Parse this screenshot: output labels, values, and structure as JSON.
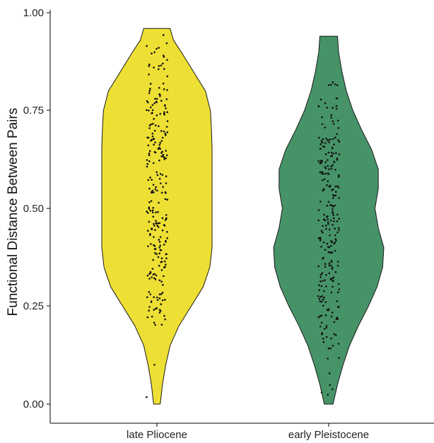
{
  "chart_data": {
    "type": "violin",
    "title": "",
    "xlabel": "",
    "ylabel": "Functional Distance Between Pairs",
    "ylim": [
      0,
      1
    ],
    "yticks": [
      "0.00",
      "0.25",
      "0.50",
      "0.75",
      "1.00"
    ],
    "ytick_values": [
      0,
      0.25,
      0.5,
      0.75,
      1.0
    ],
    "categories": [
      "late Pliocene",
      "early Pleistocene"
    ],
    "grid": false,
    "legend": "none",
    "series": [
      {
        "category": "late Pliocene",
        "color": "#EEDF35",
        "min": 0.0,
        "max": 0.96,
        "density": [
          [
            0.0,
            0.06
          ],
          [
            0.05,
            0.1
          ],
          [
            0.1,
            0.16
          ],
          [
            0.15,
            0.24
          ],
          [
            0.2,
            0.4
          ],
          [
            0.25,
            0.62
          ],
          [
            0.3,
            0.84
          ],
          [
            0.35,
            0.96
          ],
          [
            0.4,
            1.0
          ],
          [
            0.45,
            1.0
          ],
          [
            0.5,
            1.0
          ],
          [
            0.55,
            1.0
          ],
          [
            0.6,
            1.0
          ],
          [
            0.65,
            1.0
          ],
          [
            0.7,
            0.99
          ],
          [
            0.75,
            0.97
          ],
          [
            0.8,
            0.88
          ],
          [
            0.85,
            0.66
          ],
          [
            0.9,
            0.44
          ],
          [
            0.93,
            0.3
          ],
          [
            0.96,
            0.24
          ]
        ]
      },
      {
        "category": "early Pleistocene",
        "color": "#469368",
        "min": 0.0,
        "max": 0.94,
        "density": [
          [
            0.0,
            0.08
          ],
          [
            0.05,
            0.16
          ],
          [
            0.1,
            0.26
          ],
          [
            0.15,
            0.38
          ],
          [
            0.2,
            0.54
          ],
          [
            0.25,
            0.72
          ],
          [
            0.3,
            0.88
          ],
          [
            0.35,
            0.98
          ],
          [
            0.4,
            1.0
          ],
          [
            0.45,
            0.9
          ],
          [
            0.5,
            0.84
          ],
          [
            0.55,
            0.9
          ],
          [
            0.6,
            0.9
          ],
          [
            0.65,
            0.78
          ],
          [
            0.7,
            0.6
          ],
          [
            0.75,
            0.44
          ],
          [
            0.8,
            0.32
          ],
          [
            0.85,
            0.24
          ],
          [
            0.9,
            0.18
          ],
          [
            0.94,
            0.16
          ]
        ]
      }
    ]
  }
}
